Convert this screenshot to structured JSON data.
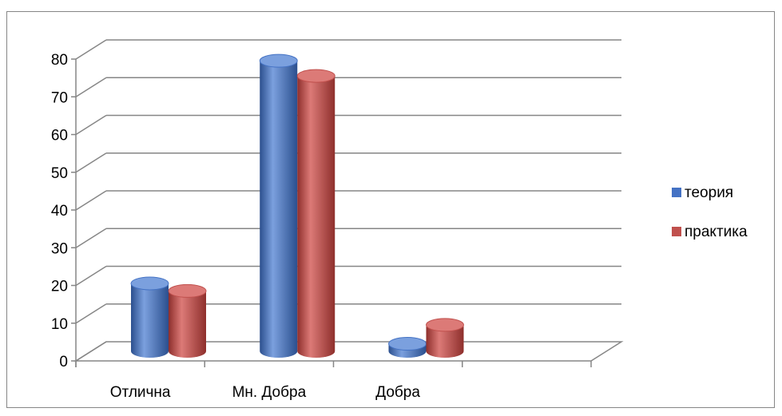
{
  "chart_data": {
    "type": "bar",
    "style": "3d-cylinder",
    "categories": [
      "Отлична",
      "Мн. Добра",
      "Добра",
      ""
    ],
    "series": [
      {
        "name": "теория",
        "values": [
          18,
          77,
          2,
          null
        ]
      },
      {
        "name": "практика",
        "values": [
          16,
          73,
          7,
          null
        ]
      }
    ],
    "ylim": [
      0,
      80
    ],
    "yticks": [
      0,
      10,
      20,
      30,
      40,
      50,
      60,
      70,
      80
    ],
    "grid": true,
    "legend_position": "right",
    "colors": {
      "series": [
        "#4472C4",
        "#C0504D"
      ],
      "series_light": [
        "#7BA0DE",
        "#DC7A77"
      ],
      "series_dark": [
        "#2B4F8E",
        "#8E2F2C"
      ],
      "grid": "#868686",
      "border": "#868686"
    }
  }
}
